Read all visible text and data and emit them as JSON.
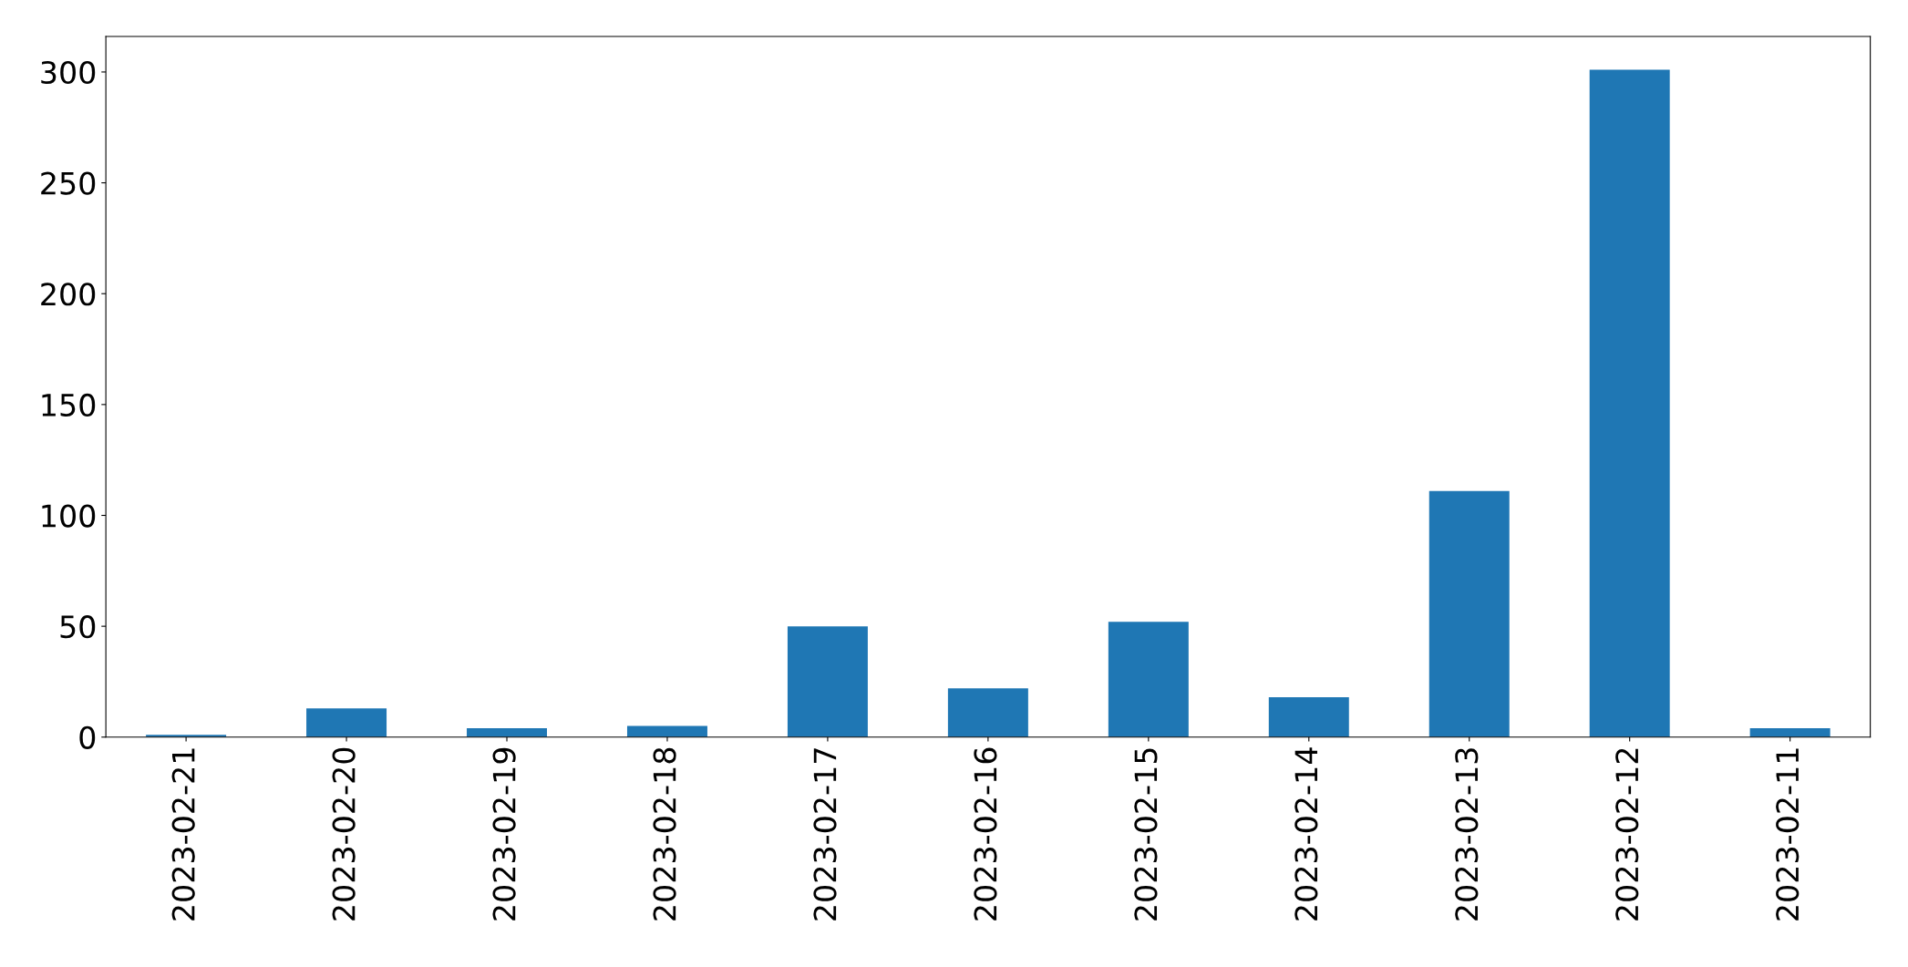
{
  "chart_data": {
    "type": "bar",
    "categories": [
      "2023-02-21",
      "2023-02-20",
      "2023-02-19",
      "2023-02-18",
      "2023-02-17",
      "2023-02-16",
      "2023-02-15",
      "2023-02-14",
      "2023-02-13",
      "2023-02-12",
      "2023-02-11"
    ],
    "values": [
      1,
      13,
      4,
      5,
      50,
      22,
      52,
      18,
      111,
      301,
      4
    ],
    "color": "#1f77b4",
    "ylim": [
      0,
      316
    ],
    "yticks": [
      0,
      50,
      100,
      150,
      200,
      250,
      300
    ],
    "grid": false
  }
}
